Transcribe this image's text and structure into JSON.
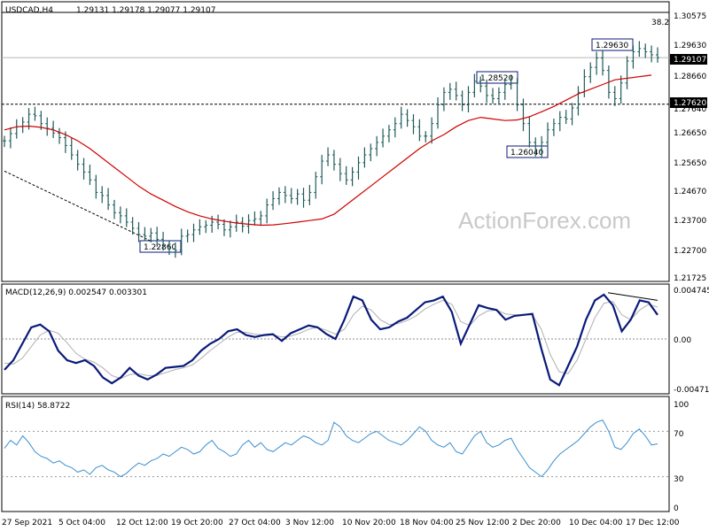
{
  "header": {
    "instrument": "USDCAD,H4",
    "ohlc": "1.29131 1.29178 1.29077 1.29107",
    "watermark": "ActionForex.com",
    "fib_label": "38.2"
  },
  "colors": {
    "candle": "#1f5a5a",
    "ma": "#d00000",
    "macd": "#0a1a7a",
    "signal": "#b0b0b0",
    "rsi": "#3a8fd0",
    "label_border": "#0a1a7a"
  },
  "chart_data": [
    {
      "type": "line",
      "panel": "price",
      "ylim": [
        1.2198,
        1.3087
      ],
      "y_ticks": [
        "1.30575",
        "1.29630",
        "1.28660",
        "1.27640",
        "1.26650",
        "1.25650",
        "1.24670",
        "1.23700",
        "1.22700",
        "1.21725"
      ],
      "x_ticks": [
        "27 Sep 2021",
        "5 Oct 04:00",
        "12 Oct 12:00",
        "19 Oct 20:00",
        "27 Oct 04:00",
        "3 Nov 12:00",
        "10 Nov 20:00",
        "18 Nov 04:00",
        "25 Nov 12:00",
        "2 Dec 20:00",
        "10 Dec 04:00",
        "17 Dec 12:00"
      ],
      "series": [
        {
          "values": [
            1.2645,
            1.2668,
            1.269,
            1.2705,
            1.273,
            1.2725,
            1.27,
            1.2685,
            1.267,
            1.2655,
            1.263,
            1.26,
            1.257,
            1.2545,
            1.252,
            1.248,
            1.247,
            1.244,
            1.2415,
            1.2405,
            1.2385,
            1.2365,
            1.2345,
            1.234,
            1.235,
            1.233,
            1.231,
            1.23,
            1.2295,
            1.234,
            1.2345,
            1.236,
            1.237,
            1.2375,
            1.2385,
            1.2378,
            1.236,
            1.237,
            1.2385,
            1.2372,
            1.239,
            1.2395,
            1.2405,
            1.244,
            1.246,
            1.248,
            1.247,
            1.246,
            1.2475,
            1.2455,
            1.248,
            1.253,
            1.258,
            1.26,
            1.257,
            1.254,
            1.252,
            1.2545,
            1.2575,
            1.26,
            1.262,
            1.264,
            1.266,
            1.268,
            1.27,
            1.273,
            1.271,
            1.269,
            1.266,
            1.266,
            1.27,
            1.276,
            1.28,
            1.281,
            1.279,
            1.276,
            1.28,
            1.2835,
            1.282,
            1.279,
            1.278,
            1.28,
            1.2825,
            1.283,
            1.276,
            1.27,
            1.264,
            1.2615,
            1.264,
            1.268,
            1.27,
            1.272,
            1.2715,
            1.275,
            1.28,
            1.285,
            1.288,
            1.291,
            1.287,
            1.28,
            1.278,
            1.283,
            1.29,
            1.293,
            1.294,
            1.293,
            1.292,
            1.2911
          ]
        },
        {
          "values": [
            1.268,
            1.269,
            1.2692,
            1.2688,
            1.268,
            1.2665,
            1.2645,
            1.262,
            1.259,
            1.256,
            1.253,
            1.25,
            1.2475,
            1.2455,
            1.2435,
            1.2418,
            1.2405,
            1.2395,
            1.2388,
            1.2382,
            1.2378,
            1.2375,
            1.2376,
            1.238,
            1.2385,
            1.239,
            1.2395,
            1.241,
            1.244,
            1.247,
            1.25,
            1.253,
            1.256,
            1.259,
            1.262,
            1.2645,
            1.2665,
            1.269,
            1.271,
            1.272,
            1.2715,
            1.271,
            1.2712,
            1.2722,
            1.2738,
            1.2755,
            1.2775,
            1.2795,
            1.281,
            1.2825,
            1.284,
            1.2855
          ],
          "x": [
            0,
            2,
            4,
            6,
            8,
            10,
            12,
            14,
            16,
            18,
            20,
            22,
            24,
            26,
            28,
            30,
            32,
            34,
            36,
            38,
            40,
            42,
            44,
            46,
            48,
            50,
            52,
            54,
            56,
            58,
            60,
            62,
            64,
            66,
            68,
            70,
            72,
            74,
            76,
            78,
            80,
            82,
            84,
            86,
            88,
            90,
            92,
            94,
            96,
            98,
            100,
            106
          ]
        }
      ],
      "h_lines": [
        1.2762,
        1.3056
      ],
      "price_label": "1.29107",
      "level_label": "1.27620",
      "annotations": [
        "1.22860",
        "1.28520",
        "1.26040",
        "1.29630"
      ]
    },
    {
      "type": "line",
      "panel": "macd",
      "title": "MACD(12,26,9) 0.002547 0.003301",
      "ylim": [
        -0.0056,
        0.0056
      ],
      "y_ticks": [
        "0.004745",
        "0.00",
        "-0.004712"
      ],
      "series": [
        {
          "values": [
            -0.0032,
            -0.0022,
            -0.0005,
            0.0012,
            0.0015,
            0.0008,
            -0.0012,
            -0.0022,
            -0.0025,
            -0.0022,
            -0.0028,
            -0.004,
            -0.0046,
            -0.004,
            -0.003,
            -0.0038,
            -0.0042,
            -0.0037,
            -0.003,
            -0.0029,
            -0.0028,
            -0.0022,
            -0.0012,
            -0.0005,
            0.0,
            0.0008,
            0.001,
            0.0004,
            0.0002,
            0.0004,
            0.0005,
            -0.0002,
            0.0006,
            0.001,
            0.0014,
            0.0012,
            0.0005,
            0.0,
            0.002,
            0.0044,
            0.004,
            0.002,
            0.001,
            0.0012,
            0.0018,
            0.0022,
            0.003,
            0.0038,
            0.004,
            0.0044,
            0.0028,
            -0.0005,
            0.0015,
            0.0035,
            0.0032,
            0.003,
            0.002,
            0.0024,
            0.0025,
            0.0026,
            -0.001,
            -0.0042,
            -0.0048,
            -0.0028,
            -0.0008,
            0.002,
            0.004,
            0.0046,
            0.0035,
            0.0008,
            0.002,
            0.004,
            0.0038,
            0.0025
          ]
        },
        {
          "values": [
            -0.0025,
            -0.0026,
            -0.002,
            -0.0008,
            0.0004,
            0.0009,
            0.0006,
            -0.0004,
            -0.0015,
            -0.0021,
            -0.0024,
            -0.003,
            -0.0038,
            -0.0041,
            -0.0037,
            -0.0036,
            -0.0038,
            -0.0038,
            -0.0035,
            -0.0032,
            -0.003,
            -0.0027,
            -0.002,
            -0.0012,
            -0.0005,
            0.0002,
            0.0007,
            0.0007,
            0.0005,
            0.0004,
            0.0004,
            0.0002,
            0.0003,
            0.0006,
            0.001,
            0.0012,
            0.0009,
            0.0005,
            0.001,
            0.0025,
            0.0034,
            0.003,
            0.002,
            0.0015,
            0.0016,
            0.0019,
            0.0024,
            0.0031,
            0.0036,
            0.004,
            0.0036,
            0.0018,
            0.0014,
            0.0024,
            0.0029,
            0.003,
            0.0026,
            0.0025,
            0.0025,
            0.0025,
            0.001,
            -0.0016,
            -0.0034,
            -0.0036,
            -0.0022,
            0.0,
            0.0022,
            0.0037,
            0.0039,
            0.0025,
            0.002,
            0.003,
            0.0036,
            0.0033
          ]
        }
      ]
    },
    {
      "type": "line",
      "panel": "rsi",
      "title": "RSI(14) 58.8722",
      "ylim": [
        0,
        100
      ],
      "y_ticks": [
        "100",
        "70",
        "30",
        "0"
      ],
      "h_lines": [
        70,
        30
      ],
      "series": [
        {
          "values": [
            55,
            62,
            58,
            66,
            60,
            52,
            48,
            46,
            42,
            44,
            40,
            38,
            34,
            36,
            32,
            38,
            40,
            36,
            34,
            30,
            33,
            38,
            42,
            40,
            44,
            46,
            50,
            48,
            52,
            56,
            54,
            50,
            52,
            58,
            62,
            55,
            52,
            48,
            50,
            58,
            62,
            56,
            60,
            54,
            52,
            56,
            60,
            58,
            62,
            66,
            64,
            60,
            58,
            62,
            78,
            74,
            66,
            62,
            60,
            64,
            68,
            70,
            66,
            62,
            60,
            58,
            62,
            68,
            74,
            70,
            62,
            58,
            56,
            60,
            52,
            50,
            58,
            66,
            70,
            60,
            56,
            58,
            62,
            64,
            54,
            46,
            38,
            34,
            30,
            36,
            44,
            50,
            54,
            58,
            62,
            68,
            74,
            78,
            80,
            70,
            56,
            54,
            60,
            68,
            72,
            66,
            58,
            59
          ]
        }
      ]
    }
  ]
}
